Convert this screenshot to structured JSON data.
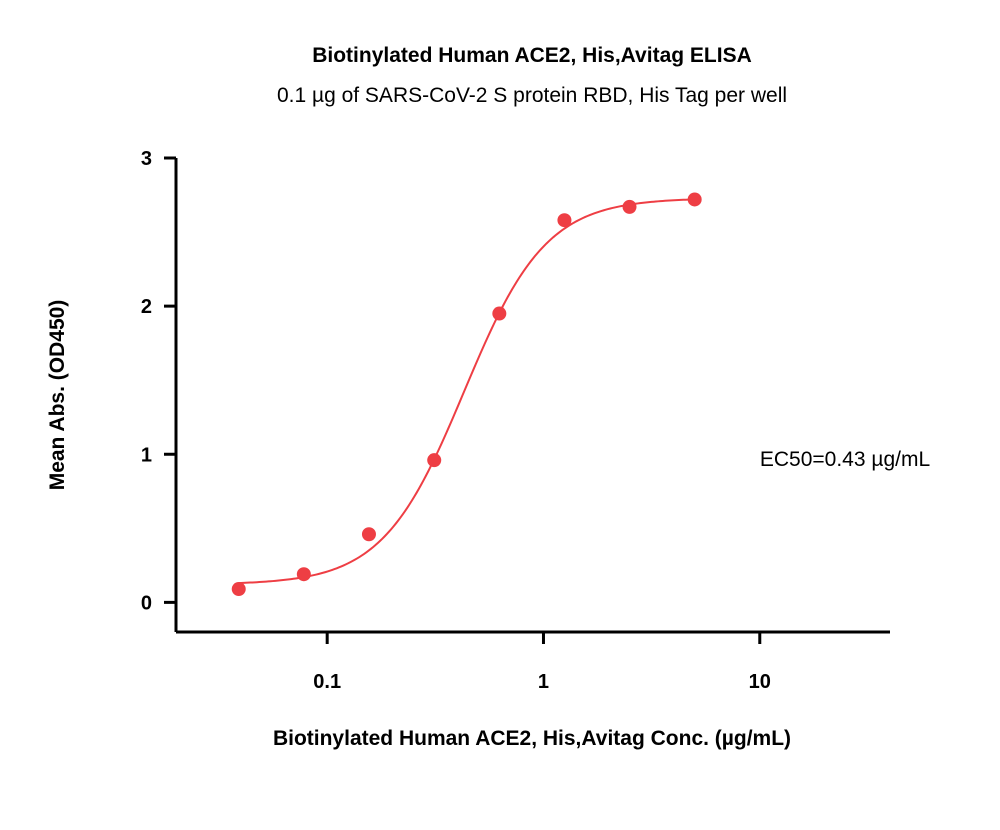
{
  "chart_data": {
    "type": "scatter",
    "title": "Biotinylated Human ACE2, His,Avitag ELISA",
    "subtitle": "0.1 µg of SARS-CoV-2 S protein RBD, His Tag per well",
    "xlabel": "Biotinylated Human ACE2, His,Avitag Conc. (µg/mL)",
    "ylabel": "Mean Abs. (OD450)",
    "x_scale": "log",
    "xlim": [
      0.02,
      40
    ],
    "ylim": [
      -0.2,
      3
    ],
    "x_ticks": [
      0.1,
      1,
      10
    ],
    "x_tick_labels": [
      "0.1",
      "1",
      "10"
    ],
    "y_ticks": [
      0,
      1,
      2,
      3
    ],
    "y_tick_labels": [
      "0",
      "1",
      "2",
      "3"
    ],
    "grid": false,
    "color": "#EE3E44",
    "series": [
      {
        "x": [
          0.039,
          0.078,
          0.156,
          0.3125,
          0.625,
          1.25,
          2.5,
          5
        ],
        "y": [
          0.09,
          0.19,
          0.46,
          0.96,
          1.95,
          2.58,
          2.67,
          2.72
        ]
      }
    ],
    "fit": {
      "type": "4PL",
      "bottom": 0.12,
      "top": 2.73,
      "ec50": 0.43,
      "hill": 2.3
    },
    "annotation": "EC50=0.43 µg/mL"
  }
}
